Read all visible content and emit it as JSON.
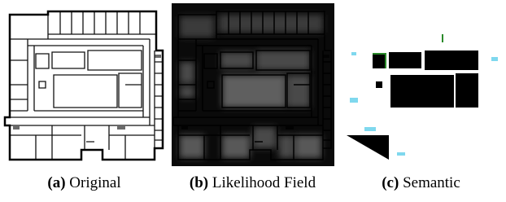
{
  "panels": [
    {
      "label": "(a)",
      "caption": "Original"
    },
    {
      "label": "(b)",
      "caption": "Likelihood Field"
    },
    {
      "label": "(c)",
      "caption": "Semantic"
    }
  ]
}
